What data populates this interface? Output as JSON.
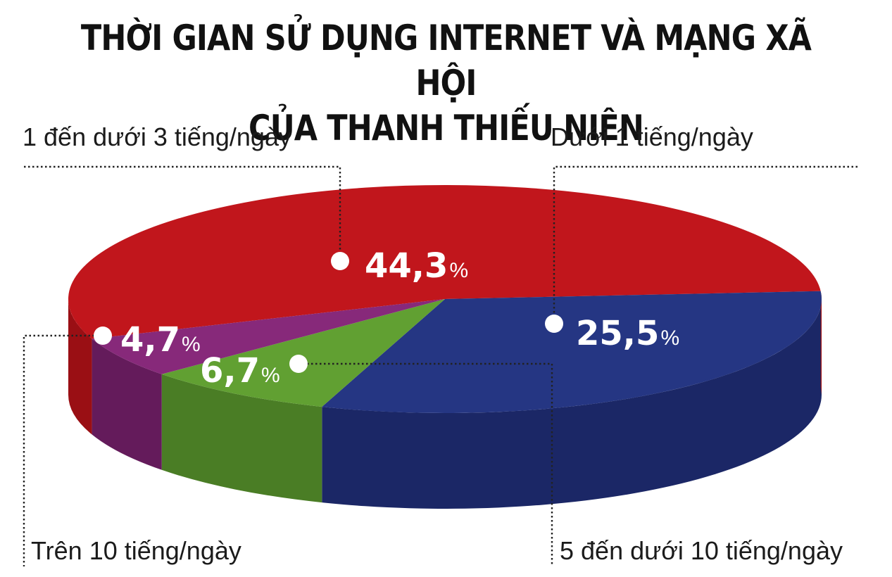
{
  "title_lines": [
    "THỜI GIAN SỬ DỤNG INTERNET VÀ MẠNG XÃ HỘI",
    "CỦA THANH THIẾU NIÊN"
  ],
  "chart_data": {
    "type": "pie",
    "title": "THỜI GIAN SỬ DỤNG INTERNET VÀ MẠNG XÃ HỘI CỦA THANH THIẾU NIÊN",
    "unit": "%",
    "style": "3d",
    "legend": "none",
    "slices": [
      {
        "label": "1 đến dưới 3 tiếng/ngày",
        "value": 44.3,
        "value_text": "44,3",
        "color": "#c1161c",
        "side_color": "#9a0f14"
      },
      {
        "label": "Dưới 1 tiếng/ngày",
        "value": 25.5,
        "value_text": "25,5",
        "color": "#253683",
        "side_color": "#1b2766"
      },
      {
        "label": "5 đến dưới 10 tiếng/ngày",
        "value": 6.7,
        "value_text": "6,7",
        "color": "#61a032",
        "side_color": "#4a7d25"
      },
      {
        "label": "Trên 10 tiếng/ngày",
        "value": 4.7,
        "value_text": "4,7",
        "color": "#87297a",
        "side_color": "#641b5b"
      }
    ]
  }
}
